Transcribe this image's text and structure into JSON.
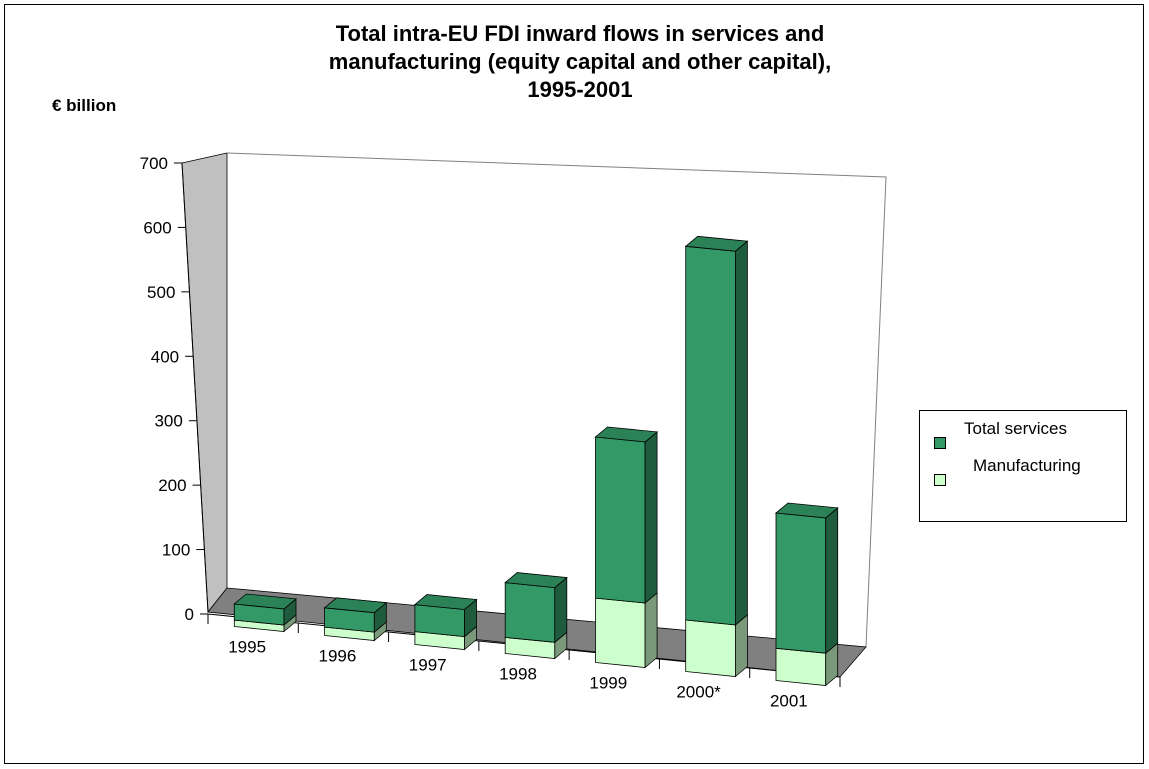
{
  "chart_data": {
    "type": "bar",
    "stacked": true,
    "three_d": true,
    "title_lines": [
      "Total intra-EU FDI inward flows in services and",
      "manufacturing (equity capital and other capital),",
      "1995-2001"
    ],
    "ylabel": "€ billion",
    "xlabel": "",
    "ylim": [
      0,
      700
    ],
    "yticks": [
      0,
      100,
      200,
      300,
      400,
      500,
      600,
      700
    ],
    "categories": [
      "1995",
      "1996",
      "1997",
      "1998",
      "1999",
      "2000*",
      "2001"
    ],
    "series": [
      {
        "name": "Manufacturing",
        "values": [
          10,
          13,
          20,
          25,
          100,
          80,
          50
        ],
        "color": "#ccffcc"
      },
      {
        "name": "Total services",
        "values": [
          25,
          30,
          42,
          85,
          250,
          580,
          210
        ],
        "color": "#339966"
      }
    ],
    "legend_position": "right",
    "legend": [
      {
        "label": "Total services",
        "color": "#339966"
      },
      {
        "label": "Manufacturing",
        "color": "#ccffcc"
      }
    ],
    "grid": false,
    "colors": {
      "wall": "#c0c0c0",
      "floor": "#808080"
    }
  }
}
